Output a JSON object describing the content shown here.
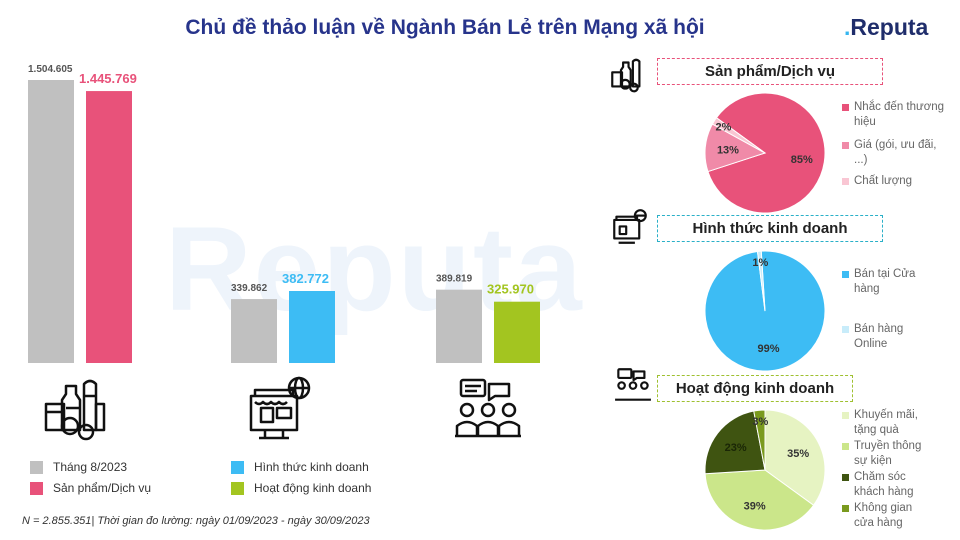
{
  "header": {
    "title": "Chủ đề thảo luận về Ngành Bán Lẻ trên Mạng xã hội",
    "logo_text": "Reputa",
    "watermark": "Reputa"
  },
  "colors": {
    "month": "#c0c0c0",
    "product": "#e8527a",
    "format": "#3dbcf4",
    "activity": "#a3c520",
    "title": "#27348b"
  },
  "chart_data": [
    {
      "type": "bar",
      "groups": [
        {
          "name": "Sản phẩm/Dịch vụ",
          "icon": "grocery-icon",
          "values": [
            1504605,
            1445769
          ],
          "labels": [
            "1.504.605",
            "1.445.769"
          ]
        },
        {
          "name": "Hình thức kinh doanh",
          "icon": "online-shop-icon",
          "values": [
            339862,
            382772
          ],
          "labels": [
            "339.862",
            "382.772"
          ]
        },
        {
          "name": "Hoạt động kinh doanh",
          "icon": "meeting-icon",
          "values": [
            389819,
            325970
          ],
          "labels": [
            "389.819",
            "325.970"
          ]
        }
      ],
      "legend": [
        {
          "label": "Tháng 8/2023",
          "color": "#c0c0c0"
        },
        {
          "label": "Hình thức kinh doanh",
          "color": "#3dbcf4"
        },
        {
          "label": "Sản phẩm/Dịch vụ",
          "color": "#e8527a"
        },
        {
          "label": "Hoạt động kinh doanh",
          "color": "#a3c520"
        }
      ],
      "ylim": [
        0,
        1504605
      ]
    },
    {
      "type": "pie",
      "title": "Sản phẩm/Dịch vụ",
      "border": "#e8527a",
      "slices": [
        {
          "label": "Nhắc đến thương hiệu",
          "value": 85,
          "text": "85%",
          "color": "#e8527a"
        },
        {
          "label": "Giá (gói, ưu đãi, ...)",
          "value": 13,
          "text": "13%",
          "color": "#f08aa8"
        },
        {
          "label": "Chất lượng",
          "value": 2,
          "text": "2%",
          "color": "#f9c6d3"
        }
      ]
    },
    {
      "type": "pie",
      "title": "Hình thức kinh doanh",
      "border": "#2ab0c8",
      "slices": [
        {
          "label": "Bán tại Cửa hàng",
          "value": 99,
          "text": "99%",
          "color": "#3dbcf4"
        },
        {
          "label": "Bán hàng Online",
          "value": 1,
          "text": "1%",
          "color": "#c8ecfa"
        }
      ]
    },
    {
      "type": "pie",
      "title": "Hoạt động kinh doanh",
      "border": "#9fc030",
      "slices": [
        {
          "label": "Khuyến mãi, tặng quà",
          "value": 35,
          "text": "35%",
          "color": "#e6f3c2"
        },
        {
          "label": "Truyền thông sự kiện",
          "value": 39,
          "text": "39%",
          "color": "#cbe68a"
        },
        {
          "label": "Chăm sóc khách hàng",
          "value": 23,
          "text": "23%",
          "color": "#3f5411"
        },
        {
          "label": "Không gian cửa hàng",
          "value": 3,
          "text": "3%",
          "color": "#7a9a1e"
        }
      ]
    }
  ],
  "pie_legends": [
    [
      "Nhắc đến thương hiệu",
      "Giá (gói, ưu đãi, ...)",
      "Chất lượng"
    ],
    [
      "Bán tại Cửa hàng",
      "Bán hàng Online"
    ],
    [
      "Khuyến mãi, tặng quà",
      "Truyền thông sự kiện",
      "Chăm sóc khách hàng",
      "Không gian cửa hàng"
    ]
  ],
  "footnote": "N = 2.855.351| Thời gian đo lường: ngày 01/09/2023 - ngày 30/09/2023"
}
